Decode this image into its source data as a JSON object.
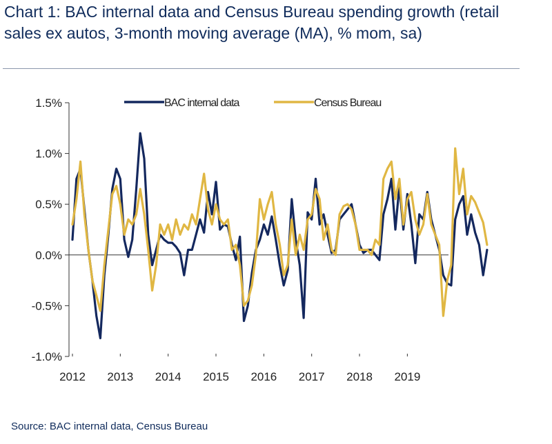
{
  "title": "Chart 1: BAC internal data and Census Bureau spending growth (retail sales ex autos, 3-month moving average (MA), % mom, sa)",
  "source": "Source: BAC internal data, Census Bureau",
  "chart_data": {
    "type": "line",
    "ylim": [
      -1.0,
      1.5
    ],
    "yticks": [
      1.5,
      1.0,
      0.5,
      0.0,
      -0.5,
      -1.0
    ],
    "ytick_labels": [
      "1.5%",
      "1.0%",
      "0.5%",
      "0.0%",
      "-0.5%",
      "-1.0%"
    ],
    "xticks": [
      "2012",
      "2013",
      "2014",
      "2015",
      "2016",
      "2017",
      "2018",
      "2019"
    ],
    "x_start": "2012-01",
    "grid": false,
    "legend": "top",
    "series": [
      {
        "name": "BAC internal data",
        "color": "#14285e",
        "values": [
          0.15,
          0.75,
          0.85,
          0.45,
          0.05,
          -0.25,
          -0.6,
          -0.82,
          -0.2,
          0.2,
          0.65,
          0.85,
          0.75,
          0.15,
          -0.02,
          0.15,
          0.65,
          1.2,
          0.95,
          0.2,
          -0.1,
          0.05,
          0.2,
          0.15,
          0.12,
          0.12,
          0.08,
          0.02,
          -0.2,
          0.05,
          0.05,
          0.2,
          0.35,
          0.22,
          0.62,
          0.4,
          0.72,
          0.25,
          0.3,
          0.28,
          0.1,
          -0.05,
          0.18,
          -0.65,
          -0.5,
          -0.18,
          0.05,
          0.15,
          0.3,
          0.2,
          0.38,
          0.15,
          -0.1,
          -0.3,
          -0.15,
          0.55,
          0.15,
          -0.1,
          -0.62,
          0.42,
          0.35,
          0.75,
          0.3,
          0.4,
          0.2,
          0.02,
          0.05,
          0.35,
          0.4,
          0.45,
          0.5,
          0.3,
          0.1,
          0.02,
          0.05,
          0.05,
          0.0,
          -0.05,
          0.4,
          0.55,
          0.75,
          0.25,
          0.68,
          0.25,
          0.6,
          0.3,
          -0.08,
          0.4,
          0.35,
          0.62,
          0.35,
          0.2,
          0.05,
          -0.2,
          -0.28,
          -0.3,
          0.35,
          0.5,
          0.58,
          0.2,
          0.4,
          0.22,
          0.1,
          -0.2,
          0.05
        ]
      },
      {
        "name": "Census Bureau",
        "color": "#e0b743",
        "values": [
          0.3,
          0.55,
          0.92,
          0.4,
          0.05,
          -0.25,
          -0.4,
          -0.55,
          -0.1,
          0.25,
          0.6,
          0.68,
          0.5,
          0.2,
          0.35,
          0.3,
          0.4,
          0.65,
          0.4,
          0.05,
          -0.35,
          -0.1,
          0.3,
          0.2,
          0.3,
          0.15,
          0.35,
          0.2,
          0.3,
          0.25,
          0.4,
          0.3,
          0.55,
          0.8,
          0.45,
          0.3,
          0.5,
          0.35,
          0.3,
          0.35,
          0.05,
          0.1,
          -0.1,
          -0.5,
          -0.45,
          -0.3,
          0.0,
          0.55,
          0.35,
          0.5,
          0.62,
          0.3,
          0.1,
          -0.2,
          -0.1,
          0.35,
          0.0,
          0.2,
          0.05,
          0.35,
          0.4,
          0.65,
          0.55,
          0.15,
          0.3,
          0.05,
          0.0,
          0.4,
          0.48,
          0.5,
          0.45,
          0.3,
          0.05,
          0.05,
          0.05,
          0.0,
          0.15,
          0.1,
          0.75,
          0.85,
          0.92,
          0.55,
          0.75,
          0.3,
          0.55,
          0.62,
          0.35,
          0.2,
          0.3,
          0.6,
          0.3,
          0.2,
          0.1,
          -0.6,
          -0.25,
          -0.1,
          1.05,
          0.6,
          0.85,
          0.4,
          0.58,
          0.52,
          0.42,
          0.32,
          0.1
        ]
      }
    ]
  }
}
